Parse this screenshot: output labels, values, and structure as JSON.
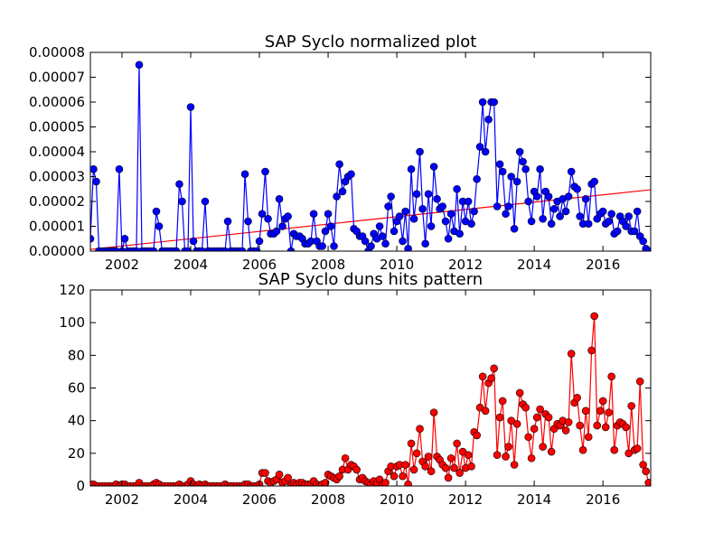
{
  "chart_data": [
    {
      "type": "line",
      "title": "SAP Syclo normalized plot",
      "xlim": [
        2001.08,
        2017.39
      ],
      "xticks": [
        2002,
        2004,
        2006,
        2008,
        2010,
        2012,
        2014,
        2016
      ],
      "ylim": [
        0,
        8e-05
      ],
      "yticks": [
        {
          "value": 0,
          "label": "0.00000"
        },
        {
          "value": 1e-05,
          "label": "0.00001"
        },
        {
          "value": 2e-05,
          "label": "0.00002"
        },
        {
          "value": 3e-05,
          "label": "0.00003"
        },
        {
          "value": 4e-05,
          "label": "0.00004"
        },
        {
          "value": 5e-05,
          "label": "0.00005"
        },
        {
          "value": 6e-05,
          "label": "0.00006"
        },
        {
          "value": 7e-05,
          "label": "0.00007"
        },
        {
          "value": 8e-05,
          "label": "0.00008"
        }
      ],
      "x": [
        2001.08,
        2001.17,
        2001.25,
        2001.33,
        2001.42,
        2001.5,
        2001.58,
        2001.67,
        2001.75,
        2001.83,
        2001.92,
        2002.0,
        2002.08,
        2002.17,
        2002.25,
        2002.33,
        2002.42,
        2002.5,
        2002.58,
        2002.67,
        2002.75,
        2002.83,
        2002.92,
        2003.0,
        2003.08,
        2003.17,
        2003.25,
        2003.33,
        2003.42,
        2003.5,
        2003.58,
        2003.67,
        2003.75,
        2003.83,
        2003.92,
        2004.0,
        2004.08,
        2004.17,
        2004.25,
        2004.33,
        2004.42,
        2004.5,
        2004.58,
        2004.67,
        2004.75,
        2004.83,
        2004.92,
        2005.0,
        2005.08,
        2005.17,
        2005.25,
        2005.33,
        2005.42,
        2005.5,
        2005.58,
        2005.67,
        2005.75,
        2005.83,
        2005.92,
        2006.0,
        2006.08,
        2006.17,
        2006.25,
        2006.33,
        2006.42,
        2006.5,
        2006.58,
        2006.67,
        2006.75,
        2006.83,
        2006.92,
        2007.0,
        2007.08,
        2007.17,
        2007.25,
        2007.33,
        2007.42,
        2007.5,
        2007.58,
        2007.67,
        2007.75,
        2007.83,
        2007.92,
        2008.0,
        2008.08,
        2008.17,
        2008.25,
        2008.33,
        2008.42,
        2008.5,
        2008.58,
        2008.67,
        2008.75,
        2008.83,
        2008.92,
        2009.0,
        2009.08,
        2009.17,
        2009.25,
        2009.33,
        2009.42,
        2009.5,
        2009.58,
        2009.67,
        2009.75,
        2009.83,
        2009.92,
        2010.0,
        2010.08,
        2010.17,
        2010.25,
        2010.33,
        2010.42,
        2010.5,
        2010.58,
        2010.67,
        2010.75,
        2010.83,
        2010.92,
        2011.0,
        2011.08,
        2011.17,
        2011.25,
        2011.33,
        2011.42,
        2011.5,
        2011.58,
        2011.67,
        2011.75,
        2011.83,
        2011.92,
        2012.0,
        2012.08,
        2012.17,
        2012.25,
        2012.33,
        2012.42,
        2012.5,
        2012.58,
        2012.67,
        2012.75,
        2012.83,
        2012.92,
        2013.0,
        2013.08,
        2013.17,
        2013.25,
        2013.33,
        2013.42,
        2013.5,
        2013.58,
        2013.67,
        2013.75,
        2013.83,
        2013.92,
        2014.0,
        2014.08,
        2014.17,
        2014.25,
        2014.33,
        2014.42,
        2014.5,
        2014.58,
        2014.67,
        2014.75,
        2014.83,
        2014.92,
        2015.0,
        2015.08,
        2015.17,
        2015.25,
        2015.33,
        2015.42,
        2015.5,
        2015.58,
        2015.67,
        2015.75,
        2015.83,
        2015.92,
        2016.0,
        2016.08,
        2016.17,
        2016.25,
        2016.33,
        2016.42,
        2016.5,
        2016.58,
        2016.67,
        2016.75,
        2016.83,
        2016.92,
        2017.0,
        2017.08,
        2017.17,
        2017.25,
        2017.33
      ],
      "series": [
        {
          "color": "#0000ff",
          "values": [
            5e-06,
            3.3e-05,
            2.8e-05,
            0,
            0,
            0,
            0,
            0,
            0,
            0,
            3.3e-05,
            0,
            5e-06,
            0,
            0,
            0,
            0,
            7.5e-05,
            0,
            0,
            0,
            0,
            0,
            1.6e-05,
            1e-05,
            0,
            0,
            0,
            0,
            0,
            0,
            2.7e-05,
            2e-05,
            0,
            0,
            5.8e-05,
            4e-06,
            0,
            0,
            0,
            2e-05,
            0,
            0,
            0,
            0,
            0,
            0,
            0,
            1.2e-05,
            0,
            0,
            0,
            0,
            0,
            3.1e-05,
            1.2e-05,
            0,
            0,
            0,
            4e-06,
            1.5e-05,
            3.2e-05,
            1.3e-05,
            7e-06,
            7e-06,
            8e-06,
            2.1e-05,
            1e-05,
            1.3e-05,
            1.4e-05,
            0,
            7e-06,
            6e-06,
            6e-06,
            5e-06,
            3e-06,
            3e-06,
            4e-06,
            1.5e-05,
            4e-06,
            2e-06,
            2e-06,
            8e-06,
            1.5e-05,
            1e-05,
            2e-06,
            2.2e-05,
            3.5e-05,
            2.4e-05,
            2.8e-05,
            3e-05,
            3.1e-05,
            9e-06,
            8e-06,
            6e-06,
            6e-06,
            4e-06,
            0,
            2e-06,
            7e-06,
            5e-06,
            1e-05,
            6e-06,
            3e-06,
            1.8e-05,
            2.2e-05,
            8e-06,
            1.2e-05,
            1.4e-05,
            4e-06,
            1.6e-05,
            1e-06,
            3.3e-05,
            1.3e-05,
            2.3e-05,
            4e-05,
            1.7e-05,
            3e-06,
            2.3e-05,
            1e-05,
            3.4e-05,
            2.1e-05,
            1.7e-05,
            1.8e-05,
            1.2e-05,
            5e-06,
            1.5e-05,
            8e-06,
            2.5e-05,
            7e-06,
            2e-05,
            1.2e-05,
            2e-05,
            1.1e-05,
            1.6e-05,
            2.9e-05,
            4.2e-05,
            6e-05,
            4e-05,
            5.3e-05,
            6e-05,
            6e-05,
            1.8e-05,
            3.5e-05,
            3.2e-05,
            1.5e-05,
            1.8e-05,
            3e-05,
            9e-06,
            2.8e-05,
            4e-05,
            3.6e-05,
            3.3e-05,
            2e-05,
            1.2e-05,
            2.4e-05,
            2.2e-05,
            3.3e-05,
            1.3e-05,
            2.4e-05,
            2.2e-05,
            1.1e-05,
            1.7e-05,
            2e-05,
            1.4e-05,
            2.1e-05,
            1.6e-05,
            2.2e-05,
            3.2e-05,
            2.6e-05,
            2.5e-05,
            1.4e-05,
            1.1e-05,
            2.1e-05,
            1.1e-05,
            2.7e-05,
            2.8e-05,
            1.3e-05,
            1.5e-05,
            1.6e-05,
            1.1e-05,
            1.2e-05,
            1.5e-05,
            7e-06,
            8e-06,
            1.4e-05,
            1.2e-05,
            1e-05,
            1.4e-05,
            8e-06,
            8e-06,
            1.6e-05,
            6e-06,
            4e-06,
            1e-06,
            0
          ]
        }
      ],
      "trend": {
        "color": "#ff0000",
        "x": [
          2001.08,
          2017.39
        ],
        "values": [
          7e-07,
          2.47e-05
        ]
      }
    },
    {
      "type": "line",
      "title": "SAP Syclo duns hits pattern",
      "xlim": [
        2001.08,
        2017.39
      ],
      "xticks": [
        2002,
        2004,
        2006,
        2008,
        2010,
        2012,
        2014,
        2016
      ],
      "ylim": [
        0,
        120
      ],
      "yticks": [
        0,
        20,
        40,
        60,
        80,
        100,
        120
      ],
      "x": [
        2001.08,
        2001.17,
        2001.25,
        2001.33,
        2001.42,
        2001.5,
        2001.58,
        2001.67,
        2001.75,
        2001.83,
        2001.92,
        2002.0,
        2002.08,
        2002.17,
        2002.25,
        2002.33,
        2002.42,
        2002.5,
        2002.58,
        2002.67,
        2002.75,
        2002.83,
        2002.92,
        2003.0,
        2003.08,
        2003.17,
        2003.25,
        2003.33,
        2003.42,
        2003.5,
        2003.58,
        2003.67,
        2003.75,
        2003.83,
        2003.92,
        2004.0,
        2004.08,
        2004.17,
        2004.25,
        2004.33,
        2004.42,
        2004.5,
        2004.58,
        2004.67,
        2004.75,
        2004.83,
        2004.92,
        2005.0,
        2005.08,
        2005.17,
        2005.25,
        2005.33,
        2005.42,
        2005.5,
        2005.58,
        2005.67,
        2005.75,
        2005.83,
        2005.92,
        2006.0,
        2006.08,
        2006.17,
        2006.25,
        2006.33,
        2006.42,
        2006.5,
        2006.58,
        2006.67,
        2006.75,
        2006.83,
        2006.92,
        2007.0,
        2007.08,
        2007.17,
        2007.25,
        2007.33,
        2007.42,
        2007.5,
        2007.58,
        2007.67,
        2007.75,
        2007.83,
        2007.92,
        2008.0,
        2008.08,
        2008.17,
        2008.25,
        2008.33,
        2008.42,
        2008.5,
        2008.58,
        2008.67,
        2008.75,
        2008.83,
        2008.92,
        2009.0,
        2009.08,
        2009.17,
        2009.25,
        2009.33,
        2009.42,
        2009.5,
        2009.58,
        2009.67,
        2009.75,
        2009.83,
        2009.92,
        2010.0,
        2010.08,
        2010.17,
        2010.25,
        2010.33,
        2010.42,
        2010.5,
        2010.58,
        2010.67,
        2010.75,
        2010.83,
        2010.92,
        2011.0,
        2011.08,
        2011.17,
        2011.25,
        2011.33,
        2011.42,
        2011.5,
        2011.58,
        2011.67,
        2011.75,
        2011.83,
        2011.92,
        2012.0,
        2012.08,
        2012.17,
        2012.25,
        2012.33,
        2012.42,
        2012.5,
        2012.58,
        2012.67,
        2012.75,
        2012.83,
        2012.92,
        2013.0,
        2013.08,
        2013.17,
        2013.25,
        2013.33,
        2013.42,
        2013.5,
        2013.58,
        2013.67,
        2013.75,
        2013.83,
        2013.92,
        2014.0,
        2014.08,
        2014.17,
        2014.25,
        2014.33,
        2014.42,
        2014.5,
        2014.58,
        2014.67,
        2014.75,
        2014.83,
        2014.92,
        2015.0,
        2015.08,
        2015.17,
        2015.25,
        2015.33,
        2015.42,
        2015.5,
        2015.58,
        2015.67,
        2015.75,
        2015.83,
        2015.92,
        2016.0,
        2016.08,
        2016.17,
        2016.25,
        2016.33,
        2016.42,
        2016.5,
        2016.58,
        2016.67,
        2016.75,
        2016.83,
        2016.92,
        2017.0,
        2017.08,
        2017.17,
        2017.25,
        2017.33
      ],
      "series": [
        {
          "color": "#ff0000",
          "values": [
            1,
            1,
            0,
            0,
            0,
            0,
            0,
            0,
            0,
            1,
            0,
            1,
            1,
            0,
            0,
            0,
            0,
            2,
            0,
            0,
            0,
            0,
            1,
            2,
            1,
            0,
            0,
            0,
            0,
            0,
            0,
            1,
            0,
            0,
            1,
            3,
            1,
            0,
            1,
            0,
            1,
            0,
            0,
            0,
            0,
            0,
            0,
            1,
            0,
            0,
            0,
            0,
            0,
            0,
            1,
            1,
            0,
            0,
            0,
            1,
            8,
            8,
            3,
            2,
            3,
            4,
            7,
            2,
            3,
            5,
            0,
            2,
            1,
            2,
            2,
            1,
            1,
            1,
            3,
            1,
            0,
            1,
            2,
            7,
            6,
            5,
            4,
            6,
            10,
            17,
            10,
            13,
            12,
            10,
            4,
            5,
            3,
            2,
            1,
            3,
            2,
            4,
            1,
            2,
            9,
            12,
            6,
            12,
            13,
            6,
            13,
            1,
            26,
            10,
            20,
            35,
            15,
            12,
            18,
            9,
            45,
            18,
            16,
            13,
            11,
            5,
            17,
            11,
            26,
            8,
            21,
            11,
            19,
            12,
            33,
            31,
            48,
            67,
            46,
            63,
            66,
            72,
            19,
            42,
            52,
            18,
            24,
            40,
            13,
            38,
            57,
            50,
            48,
            30,
            17,
            35,
            42,
            47,
            24,
            44,
            42,
            21,
            35,
            38,
            37,
            40,
            34,
            39,
            81,
            51,
            54,
            37,
            22,
            46,
            30,
            83,
            104,
            37,
            46,
            52,
            36,
            45,
            67,
            22,
            37,
            39,
            38,
            36,
            20,
            49,
            22,
            23,
            64,
            13,
            9,
            2
          ]
        }
      ]
    }
  ]
}
